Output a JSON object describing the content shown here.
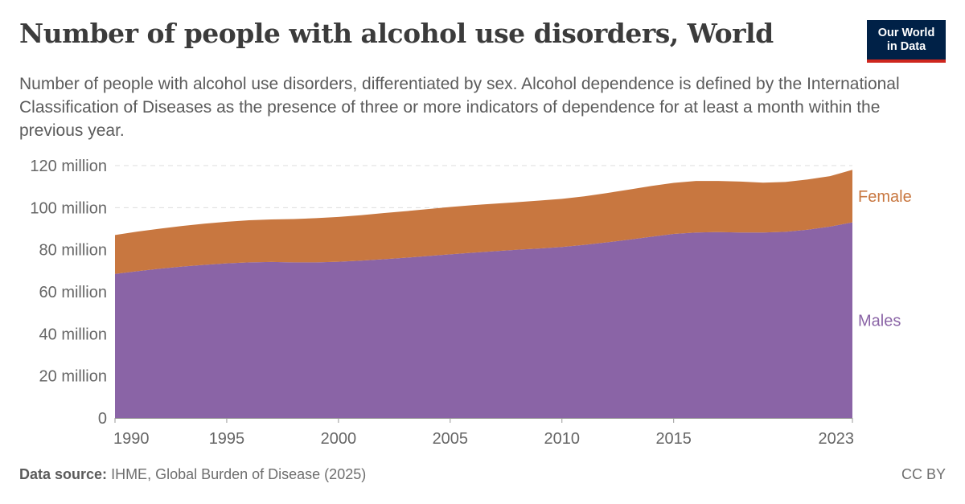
{
  "title": "Number of people with alcohol use disorders, World",
  "subtitle": "Number of people with alcohol use disorders, differentiated by sex. Alcohol dependence is defined by the International Classification of Diseases as the presence of three or more indicators of dependence for at least a month within the previous year.",
  "logo": {
    "line1": "Our World",
    "line2": "in Data",
    "bg_color": "#002147",
    "accent_color": "#ce261e"
  },
  "footer": {
    "source_label": "Data source:",
    "source_text": "IHME, Global Burden of Disease (2025)",
    "license": "CC BY"
  },
  "chart_data": {
    "type": "area",
    "stacked": true,
    "x": [
      1990,
      1991,
      1992,
      1993,
      1994,
      1995,
      1996,
      1997,
      1998,
      1999,
      2000,
      2001,
      2002,
      2003,
      2004,
      2005,
      2006,
      2007,
      2008,
      2009,
      2010,
      2011,
      2012,
      2013,
      2014,
      2015,
      2016,
      2017,
      2018,
      2019,
      2020,
      2021,
      2022,
      2023
    ],
    "series": [
      {
        "name": "Males",
        "color": "#8a64a6",
        "values": [
          68.5,
          69.8,
          71.0,
          72.0,
          72.8,
          73.5,
          74.0,
          74.2,
          74.0,
          74.0,
          74.3,
          74.8,
          75.5,
          76.2,
          77.0,
          77.8,
          78.6,
          79.3,
          80.0,
          80.6,
          81.3,
          82.3,
          83.5,
          84.8,
          86.2,
          87.5,
          88.2,
          88.4,
          88.2,
          88.2,
          88.5,
          89.5,
          91.0,
          93.0
        ]
      },
      {
        "name": "Female",
        "color": "#c87740",
        "values": [
          18.5,
          18.8,
          19.0,
          19.3,
          19.6,
          19.8,
          20.0,
          20.2,
          20.6,
          21.0,
          21.3,
          21.6,
          21.9,
          22.1,
          22.3,
          22.5,
          22.6,
          22.6,
          22.6,
          22.8,
          22.9,
          23.1,
          23.4,
          23.8,
          24.1,
          24.3,
          24.5,
          24.3,
          24.2,
          23.7,
          23.7,
          23.9,
          24.0,
          25.0
        ]
      }
    ],
    "y_ticks": [
      0,
      20,
      40,
      60,
      80,
      100,
      120
    ],
    "y_tick_labels": [
      "0",
      "20 million",
      "40 million",
      "60 million",
      "80 million",
      "100 million",
      "120 million"
    ],
    "x_ticks": [
      1990,
      1995,
      2000,
      2005,
      2010,
      2015,
      2023
    ],
    "x_tick_labels": [
      "1990",
      "1995",
      "2000",
      "2005",
      "2010",
      "2015",
      "2023"
    ],
    "ylim": [
      0,
      120
    ],
    "xlim": [
      1990,
      2023
    ],
    "grid": "horizontal-dashed",
    "legend": "inline-right"
  }
}
